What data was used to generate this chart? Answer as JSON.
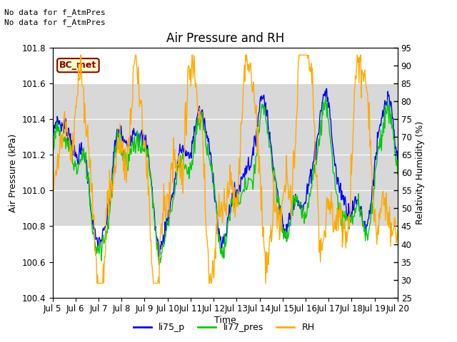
{
  "title": "Air Pressure and RH",
  "xlabel": "Time",
  "ylabel_left": "Air Pressure (kPa)",
  "ylabel_right": "Relativity Humidity (%)",
  "annotation_lines": [
    "No data for f_AtmPres",
    "No data for f_AtmPres"
  ],
  "bc_met_label": "BC_met",
  "xlim": [
    0,
    15
  ],
  "ylim_left": [
    100.4,
    101.8
  ],
  "ylim_right": [
    25,
    95
  ],
  "yticks_left": [
    100.4,
    100.6,
    100.8,
    101.0,
    101.2,
    101.4,
    101.6,
    101.8
  ],
  "yticks_right": [
    25,
    30,
    35,
    40,
    45,
    50,
    55,
    60,
    65,
    70,
    75,
    80,
    85,
    90,
    95
  ],
  "xtick_labels": [
    "Jul 5",
    "Jul 6",
    "Jul 7",
    "Jul 8",
    "Jul 9",
    "Jul 10",
    "Jul 11",
    "Jul 12",
    "Jul 13",
    "Jul 14",
    "Jul 15",
    "Jul 16",
    "Jul 17",
    "Jul 18",
    "Jul 19",
    "Jul 20"
  ],
  "xtick_positions": [
    0,
    1,
    2,
    3,
    4,
    5,
    6,
    7,
    8,
    9,
    10,
    11,
    12,
    13,
    14,
    15
  ],
  "color_li75": "#0000ff",
  "color_li77": "#00cc00",
  "color_rh": "#ffaa00",
  "legend_entries": [
    "li75_p",
    "li77_pres",
    "RH"
  ],
  "bg_band_ylim": [
    100.8,
    101.6
  ],
  "bg_color": "#d8d8d8",
  "title_fontsize": 12,
  "label_fontsize": 9,
  "tick_fontsize": 8.5
}
